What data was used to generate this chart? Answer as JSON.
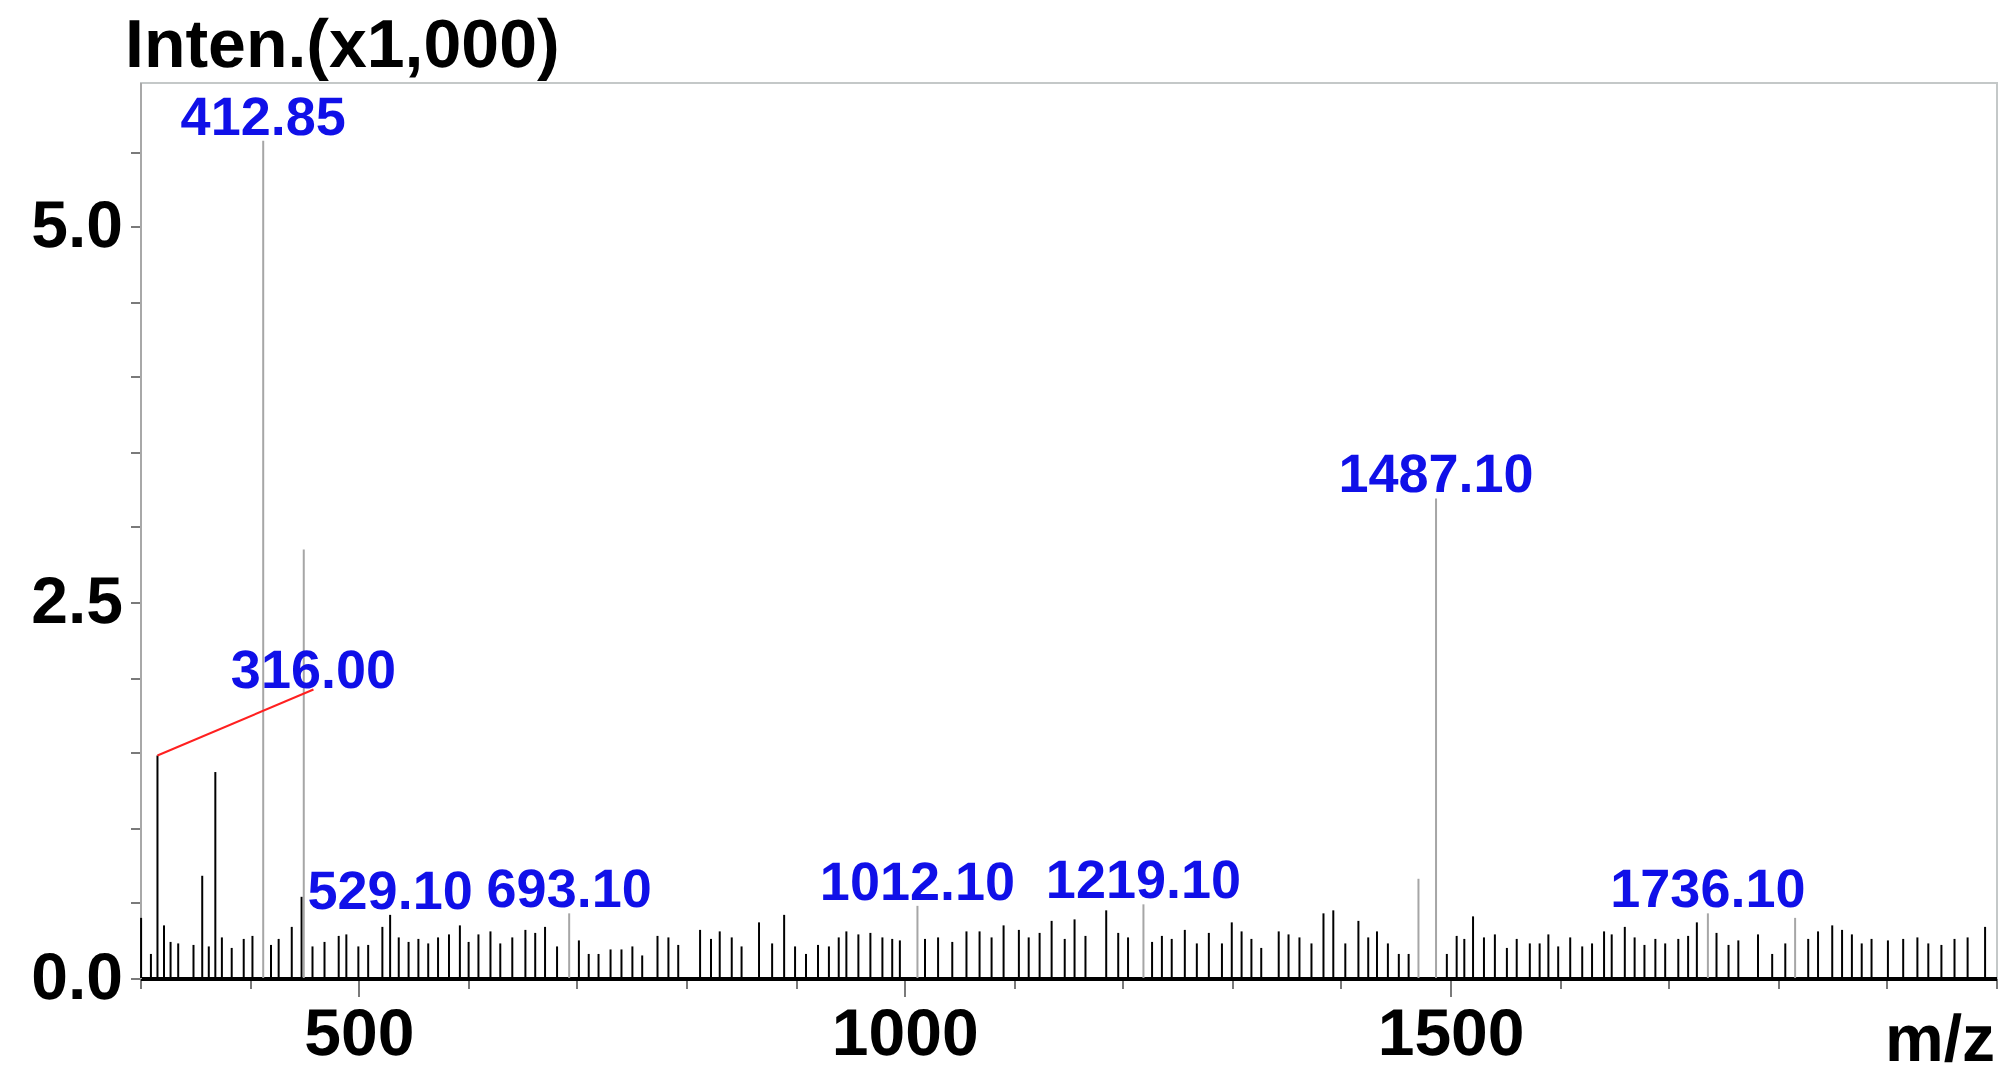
{
  "chart_data": {
    "type": "bar",
    "xlabel": "m/z",
    "ylabel": "Inten.(x1,000)",
    "xlim": [
      300,
      2000
    ],
    "ylim": [
      0,
      5.96
    ],
    "xticks": [
      {
        "value": 300,
        "label": null
      },
      {
        "value": 400,
        "label": null
      },
      500,
      {
        "value": 600,
        "label": null
      },
      {
        "value": 700,
        "label": null
      },
      {
        "value": 800,
        "label": null
      },
      {
        "value": 900,
        "label": null
      },
      1000,
      {
        "value": 1100,
        "label": null
      },
      {
        "value": 1200,
        "label": null
      },
      {
        "value": 1300,
        "label": null
      },
      {
        "value": 1400,
        "label": null
      },
      1500,
      {
        "value": 1600,
        "label": null
      },
      {
        "value": 1700,
        "label": null
      },
      {
        "value": 1800,
        "label": null
      },
      {
        "value": 1900,
        "label": null
      },
      {
        "value": 2000,
        "label": null
      }
    ],
    "yticks": [
      {
        "value": 0,
        "label": "0.0"
      },
      {
        "value": 0.5,
        "label": null
      },
      {
        "value": 1,
        "label": null
      },
      {
        "value": 1.5,
        "label": null
      },
      {
        "value": 2,
        "label": null
      },
      2.5,
      {
        "value": 3,
        "label": null
      },
      {
        "value": 3.5,
        "label": null
      },
      {
        "value": 4,
        "label": null
      },
      {
        "value": 4.5,
        "label": null
      },
      {
        "value": 5,
        "label": "5.0"
      },
      {
        "value": 5.5,
        "label": null
      }
    ],
    "series": [
      {
        "color": "#000000",
        "x": [
          301,
          310,
          316.0,
          322,
          328,
          335,
          349,
          357,
          363,
          369,
          375,
          384,
          395,
          403,
          420,
          427,
          439,
          448,
          458,
          469,
          482,
          489,
          500,
          509,
          522,
          529.1,
          537,
          546,
          555,
          564,
          573,
          583,
          593,
          601,
          610,
          621,
          630,
          641,
          653,
          662,
          671,
          682,
          702,
          711,
          720,
          731,
          741,
          751,
          760,
          774,
          784,
          793,
          813,
          823,
          831,
          842,
          851,
          867,
          879,
          890,
          900,
          910,
          921,
          931,
          940,
          947,
          958,
          969,
          980,
          989,
          996,
          1019,
          1031,
          1044,
          1057,
          1069,
          1080,
          1091,
          1105,
          1114,
          1124,
          1135,
          1147,
          1156,
          1166,
          1185,
          1196,
          1205,
          1227,
          1236,
          1245,
          1257,
          1268,
          1279,
          1291,
          1300,
          1309,
          1318,
          1327,
          1343,
          1352,
          1362,
          1373,
          1384,
          1393,
          1404,
          1416,
          1425,
          1433,
          1443,
          1453,
          1462,
          1497,
          1506,
          1513,
          1521,
          1531,
          1541,
          1552,
          1561,
          1573,
          1582,
          1590,
          1599,
          1610,
          1621,
          1630,
          1641,
          1648,
          1660,
          1669,
          1678,
          1688,
          1697,
          1709,
          1718,
          1726,
          1744,
          1755,
          1764,
          1782,
          1795,
          1807,
          1828,
          1837,
          1850,
          1859,
          1868,
          1877,
          1886,
          1901,
          1915,
          1928,
          1938,
          1950,
          1962,
          1974,
          1990
        ],
        "values": [
          0.4,
          0.16,
          1.48,
          0.35,
          0.24,
          0.23,
          0.22,
          0.68,
          0.21,
          1.37,
          0.27,
          0.2,
          0.26,
          0.28,
          0.22,
          0.26,
          0.34,
          0.54,
          0.21,
          0.24,
          0.28,
          0.29,
          0.21,
          0.22,
          0.34,
          0.42,
          0.27,
          0.24,
          0.26,
          0.23,
          0.27,
          0.29,
          0.35,
          0.24,
          0.29,
          0.31,
          0.23,
          0.27,
          0.32,
          0.3,
          0.34,
          0.21,
          0.25,
          0.16,
          0.16,
          0.19,
          0.19,
          0.21,
          0.15,
          0.28,
          0.27,
          0.22,
          0.32,
          0.26,
          0.31,
          0.27,
          0.21,
          0.37,
          0.23,
          0.42,
          0.21,
          0.16,
          0.22,
          0.21,
          0.27,
          0.31,
          0.29,
          0.3,
          0.27,
          0.26,
          0.25,
          0.26,
          0.27,
          0.24,
          0.31,
          0.31,
          0.27,
          0.35,
          0.32,
          0.27,
          0.3,
          0.38,
          0.26,
          0.39,
          0.28,
          0.45,
          0.3,
          0.27,
          0.24,
          0.28,
          0.26,
          0.32,
          0.23,
          0.3,
          0.23,
          0.37,
          0.31,
          0.26,
          0.2,
          0.31,
          0.29,
          0.27,
          0.23,
          0.43,
          0.45,
          0.23,
          0.38,
          0.27,
          0.31,
          0.23,
          0.16,
          0.16,
          0.16,
          0.28,
          0.26,
          0.41,
          0.27,
          0.29,
          0.2,
          0.26,
          0.23,
          0.23,
          0.29,
          0.21,
          0.27,
          0.21,
          0.23,
          0.31,
          0.29,
          0.34,
          0.27,
          0.22,
          0.26,
          0.23,
          0.26,
          0.28,
          0.37,
          0.3,
          0.22,
          0.25,
          0.29,
          0.16,
          0.23,
          0.26,
          0.31,
          0.35,
          0.32,
          0.29,
          0.23,
          0.26,
          0.25,
          0.26,
          0.27,
          0.23,
          0.22,
          0.26,
          0.27,
          0.34
        ]
      },
      {
        "color": "#a6a6a6",
        "x": [
          412.85,
          450,
          693.1,
          1012.1,
          1219.1,
          1471,
          1487.1,
          1736.1,
          1816
        ],
        "values": [
          5.57,
          2.85,
          0.43,
          0.48,
          0.49,
          0.66,
          3.19,
          0.43,
          0.4
        ]
      }
    ],
    "annotations": [
      {
        "text": "412.85",
        "x": 412.85,
        "y": 5.57
      },
      {
        "text": "316.00",
        "x": 316.0,
        "y": 1.48
      },
      {
        "text": "529.10",
        "x": 529.1,
        "y": 0.42
      },
      {
        "text": "693.10",
        "x": 693.1,
        "y": 0.43
      },
      {
        "text": "1012.10",
        "x": 1012.1,
        "y": 0.48
      },
      {
        "text": "1219.10",
        "x": 1219.1,
        "y": 0.49
      },
      {
        "text": "1487.10",
        "x": 1487.1,
        "y": 3.19
      },
      {
        "text": "1736.10",
        "x": 1736.1,
        "y": 0.43
      }
    ]
  }
}
